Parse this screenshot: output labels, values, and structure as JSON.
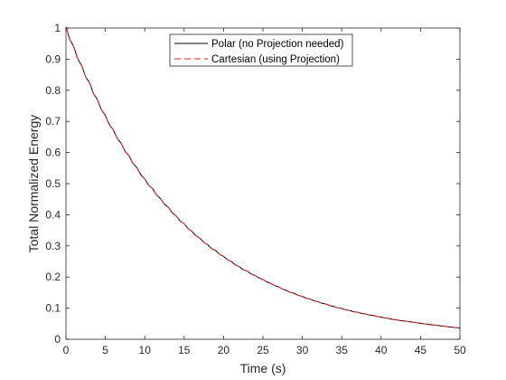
{
  "chart_data": {
    "type": "line",
    "title": "",
    "xlabel": "Time (s)",
    "ylabel": "Total Normalized Energy",
    "xlim": [
      0,
      50
    ],
    "ylim": [
      0,
      1
    ],
    "xticks": [
      0,
      5,
      10,
      15,
      20,
      25,
      30,
      35,
      40,
      45,
      50
    ],
    "yticks": [
      0,
      0.1,
      0.2,
      0.3,
      0.4,
      0.5,
      0.6,
      0.7,
      0.8,
      0.9,
      1
    ],
    "xtick_labels": [
      "0",
      "5",
      "10",
      "15",
      "20",
      "25",
      "30",
      "35",
      "40",
      "45",
      "50"
    ],
    "ytick_labels": [
      "0",
      "0.1",
      "0.2",
      "0.3",
      "0.4",
      "0.5",
      "0.6",
      "0.7",
      "0.8",
      "0.9",
      "1"
    ],
    "grid": false,
    "legend_position": "top-center",
    "series": [
      {
        "name": "Polar (no Projection needed)",
        "color": "#000000",
        "style": "solid",
        "x": [
          0,
          1,
          2,
          3,
          4,
          5,
          6,
          7,
          8,
          9,
          10,
          12,
          14,
          16,
          18,
          20,
          22,
          24,
          26,
          28,
          30,
          32,
          34,
          36,
          38,
          40,
          42,
          44,
          46,
          48,
          50
        ],
        "y": [
          1.0,
          0.935,
          0.875,
          0.82,
          0.766,
          0.716,
          0.67,
          0.627,
          0.587,
          0.549,
          0.513,
          0.45,
          0.394,
          0.345,
          0.302,
          0.265,
          0.232,
          0.204,
          0.179,
          0.156,
          0.137,
          0.12,
          0.105,
          0.092,
          0.081,
          0.071,
          0.062,
          0.055,
          0.048,
          0.042,
          0.036
        ]
      },
      {
        "name": "Cartesian (using Projection)",
        "color": "#e0201b",
        "style": "dashed",
        "x": [
          0,
          1,
          2,
          3,
          4,
          5,
          6,
          7,
          8,
          9,
          10,
          12,
          14,
          16,
          18,
          20,
          22,
          24,
          26,
          28,
          30,
          32,
          34,
          36,
          38,
          40,
          42,
          44,
          46,
          48,
          50
        ],
        "y": [
          1.0,
          0.935,
          0.875,
          0.82,
          0.766,
          0.716,
          0.67,
          0.627,
          0.587,
          0.549,
          0.513,
          0.45,
          0.394,
          0.345,
          0.302,
          0.265,
          0.232,
          0.204,
          0.179,
          0.156,
          0.137,
          0.12,
          0.105,
          0.092,
          0.081,
          0.071,
          0.062,
          0.055,
          0.048,
          0.042,
          0.036
        ]
      }
    ]
  }
}
